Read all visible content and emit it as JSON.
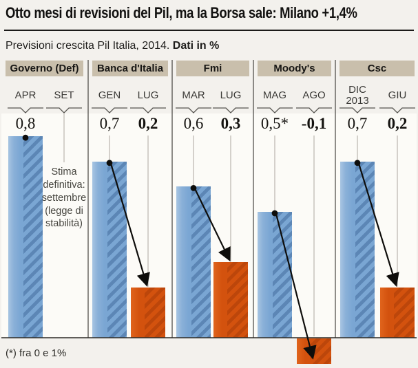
{
  "title": "Otto mesi di revisioni del Pil, ma la Borsa sale: Milano +1,4%",
  "subtitle": {
    "text": "Previsioni crescita Pil Italia, 2014.",
    "bold": "Dati in %"
  },
  "footnote": "(*) fra 0 e 1%",
  "colors": {
    "background": "#f3f1ed",
    "plot_background": "#fcfbf7",
    "header_background": "#c9bfac",
    "first_estimate_bar": "#7aa6d3",
    "revised_estimate_bar": "#d3520e",
    "arrow": "#0e0d0b"
  },
  "chart_data": {
    "type": "bar",
    "title": "Previsioni crescita Pil Italia, 2014",
    "unit": "%",
    "ylim": [
      -0.1,
      0.8
    ],
    "grid": false,
    "legend": "none",
    "panels": [
      {
        "source": "Governo (Def)",
        "columns": [
          {
            "month": "APR",
            "label": "0,8",
            "value": 0.8,
            "color": "blue"
          },
          {
            "month": "SET",
            "label": "",
            "value": null,
            "color": "none",
            "note": "Stima definitiva: settembre (legge di stabilità)"
          }
        ]
      },
      {
        "source": "Banca d'Italia",
        "columns": [
          {
            "month": "GEN",
            "label": "0,7",
            "value": 0.7,
            "color": "blue"
          },
          {
            "month": "LUG",
            "label": "0,2",
            "value": 0.2,
            "color": "orange"
          }
        ]
      },
      {
        "source": "Fmi",
        "columns": [
          {
            "month": "MAR",
            "label": "0,6",
            "value": 0.6,
            "color": "blue"
          },
          {
            "month": "LUG",
            "label": "0,3",
            "value": 0.3,
            "color": "orange"
          }
        ]
      },
      {
        "source": "Moody's",
        "columns": [
          {
            "month": "MAG",
            "label": "0,5*",
            "value": 0.5,
            "color": "blue"
          },
          {
            "month": "AGO",
            "label": "-0,1",
            "value": -0.1,
            "color": "orange"
          }
        ]
      },
      {
        "source": "Csc",
        "columns": [
          {
            "month": "DIC 2013",
            "label": "0,7",
            "value": 0.7,
            "color": "blue"
          },
          {
            "month": "GIU",
            "label": "0,2",
            "value": 0.2,
            "color": "orange"
          }
        ]
      }
    ]
  }
}
